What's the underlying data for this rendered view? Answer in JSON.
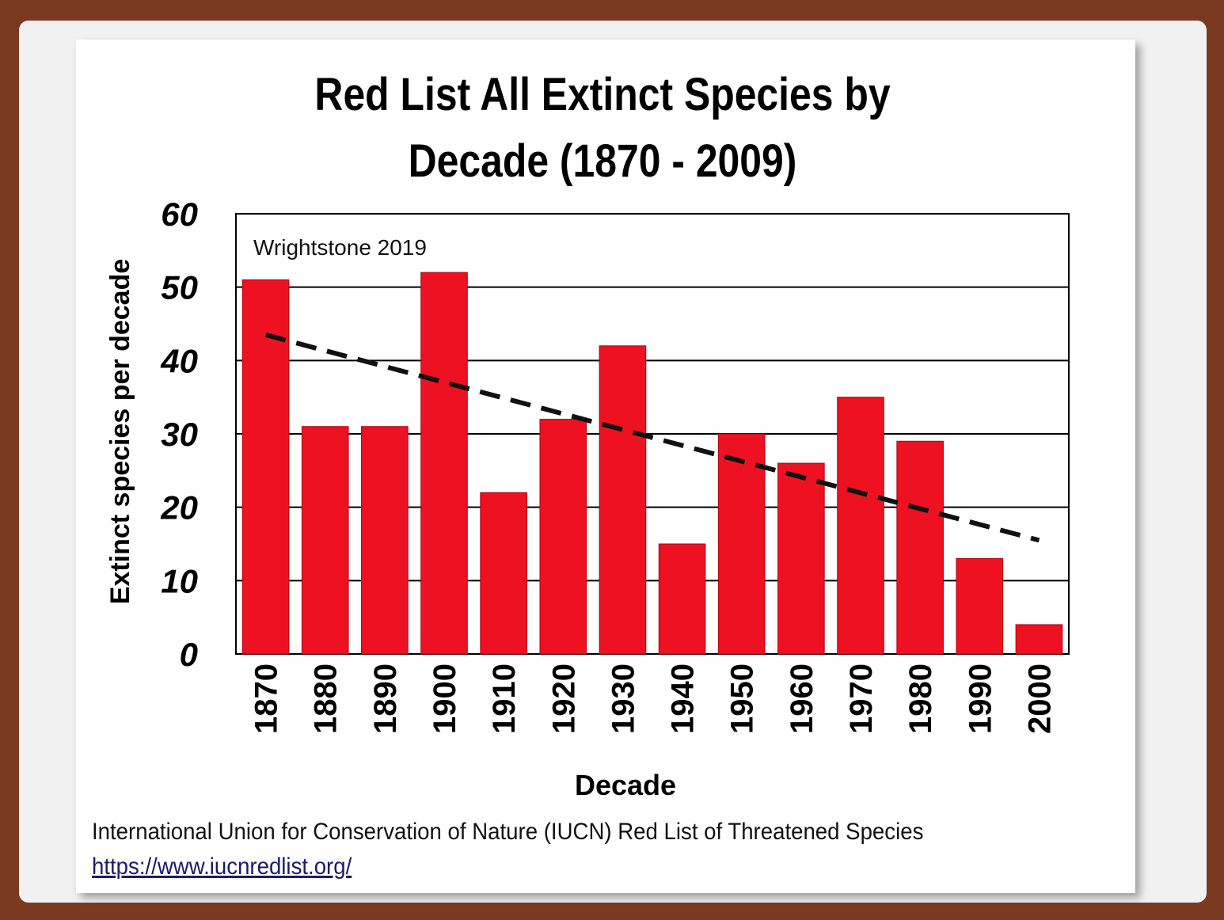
{
  "chart_data": {
    "type": "bar",
    "title": "Red List All Extinct Species by Decade (1870 - 2009)",
    "title_lines": [
      "Red List All Extinct Species by",
      "Decade (1870 - 2009)"
    ],
    "annotation": "Wrightstone 2019",
    "xlabel": "Decade",
    "ylabel": "Extinct species per decade",
    "categories": [
      "1870",
      "1880",
      "1890",
      "1900",
      "1910",
      "1920",
      "1930",
      "1940",
      "1950",
      "1960",
      "1970",
      "1980",
      "1990",
      "2000"
    ],
    "values": [
      51,
      31,
      31,
      52,
      22,
      32,
      42,
      15,
      30,
      26,
      35,
      29,
      13,
      4
    ],
    "yticks": [
      0,
      10,
      20,
      30,
      40,
      50,
      60
    ],
    "ylim": [
      0,
      60
    ],
    "grid": true,
    "trendline": {
      "style": "dashed",
      "start": [
        1870,
        43.5
      ],
      "end": [
        2000,
        15.5
      ]
    },
    "colors": {
      "bar": "#ee1122",
      "bar_edge": "#b30010",
      "trend": "#111111",
      "grid": "#000000"
    }
  },
  "source": {
    "text": "International Union for Conservation of Nature (IUCN) Red List of Threatened Species",
    "link": "https://www.iucnredlist.org/"
  }
}
